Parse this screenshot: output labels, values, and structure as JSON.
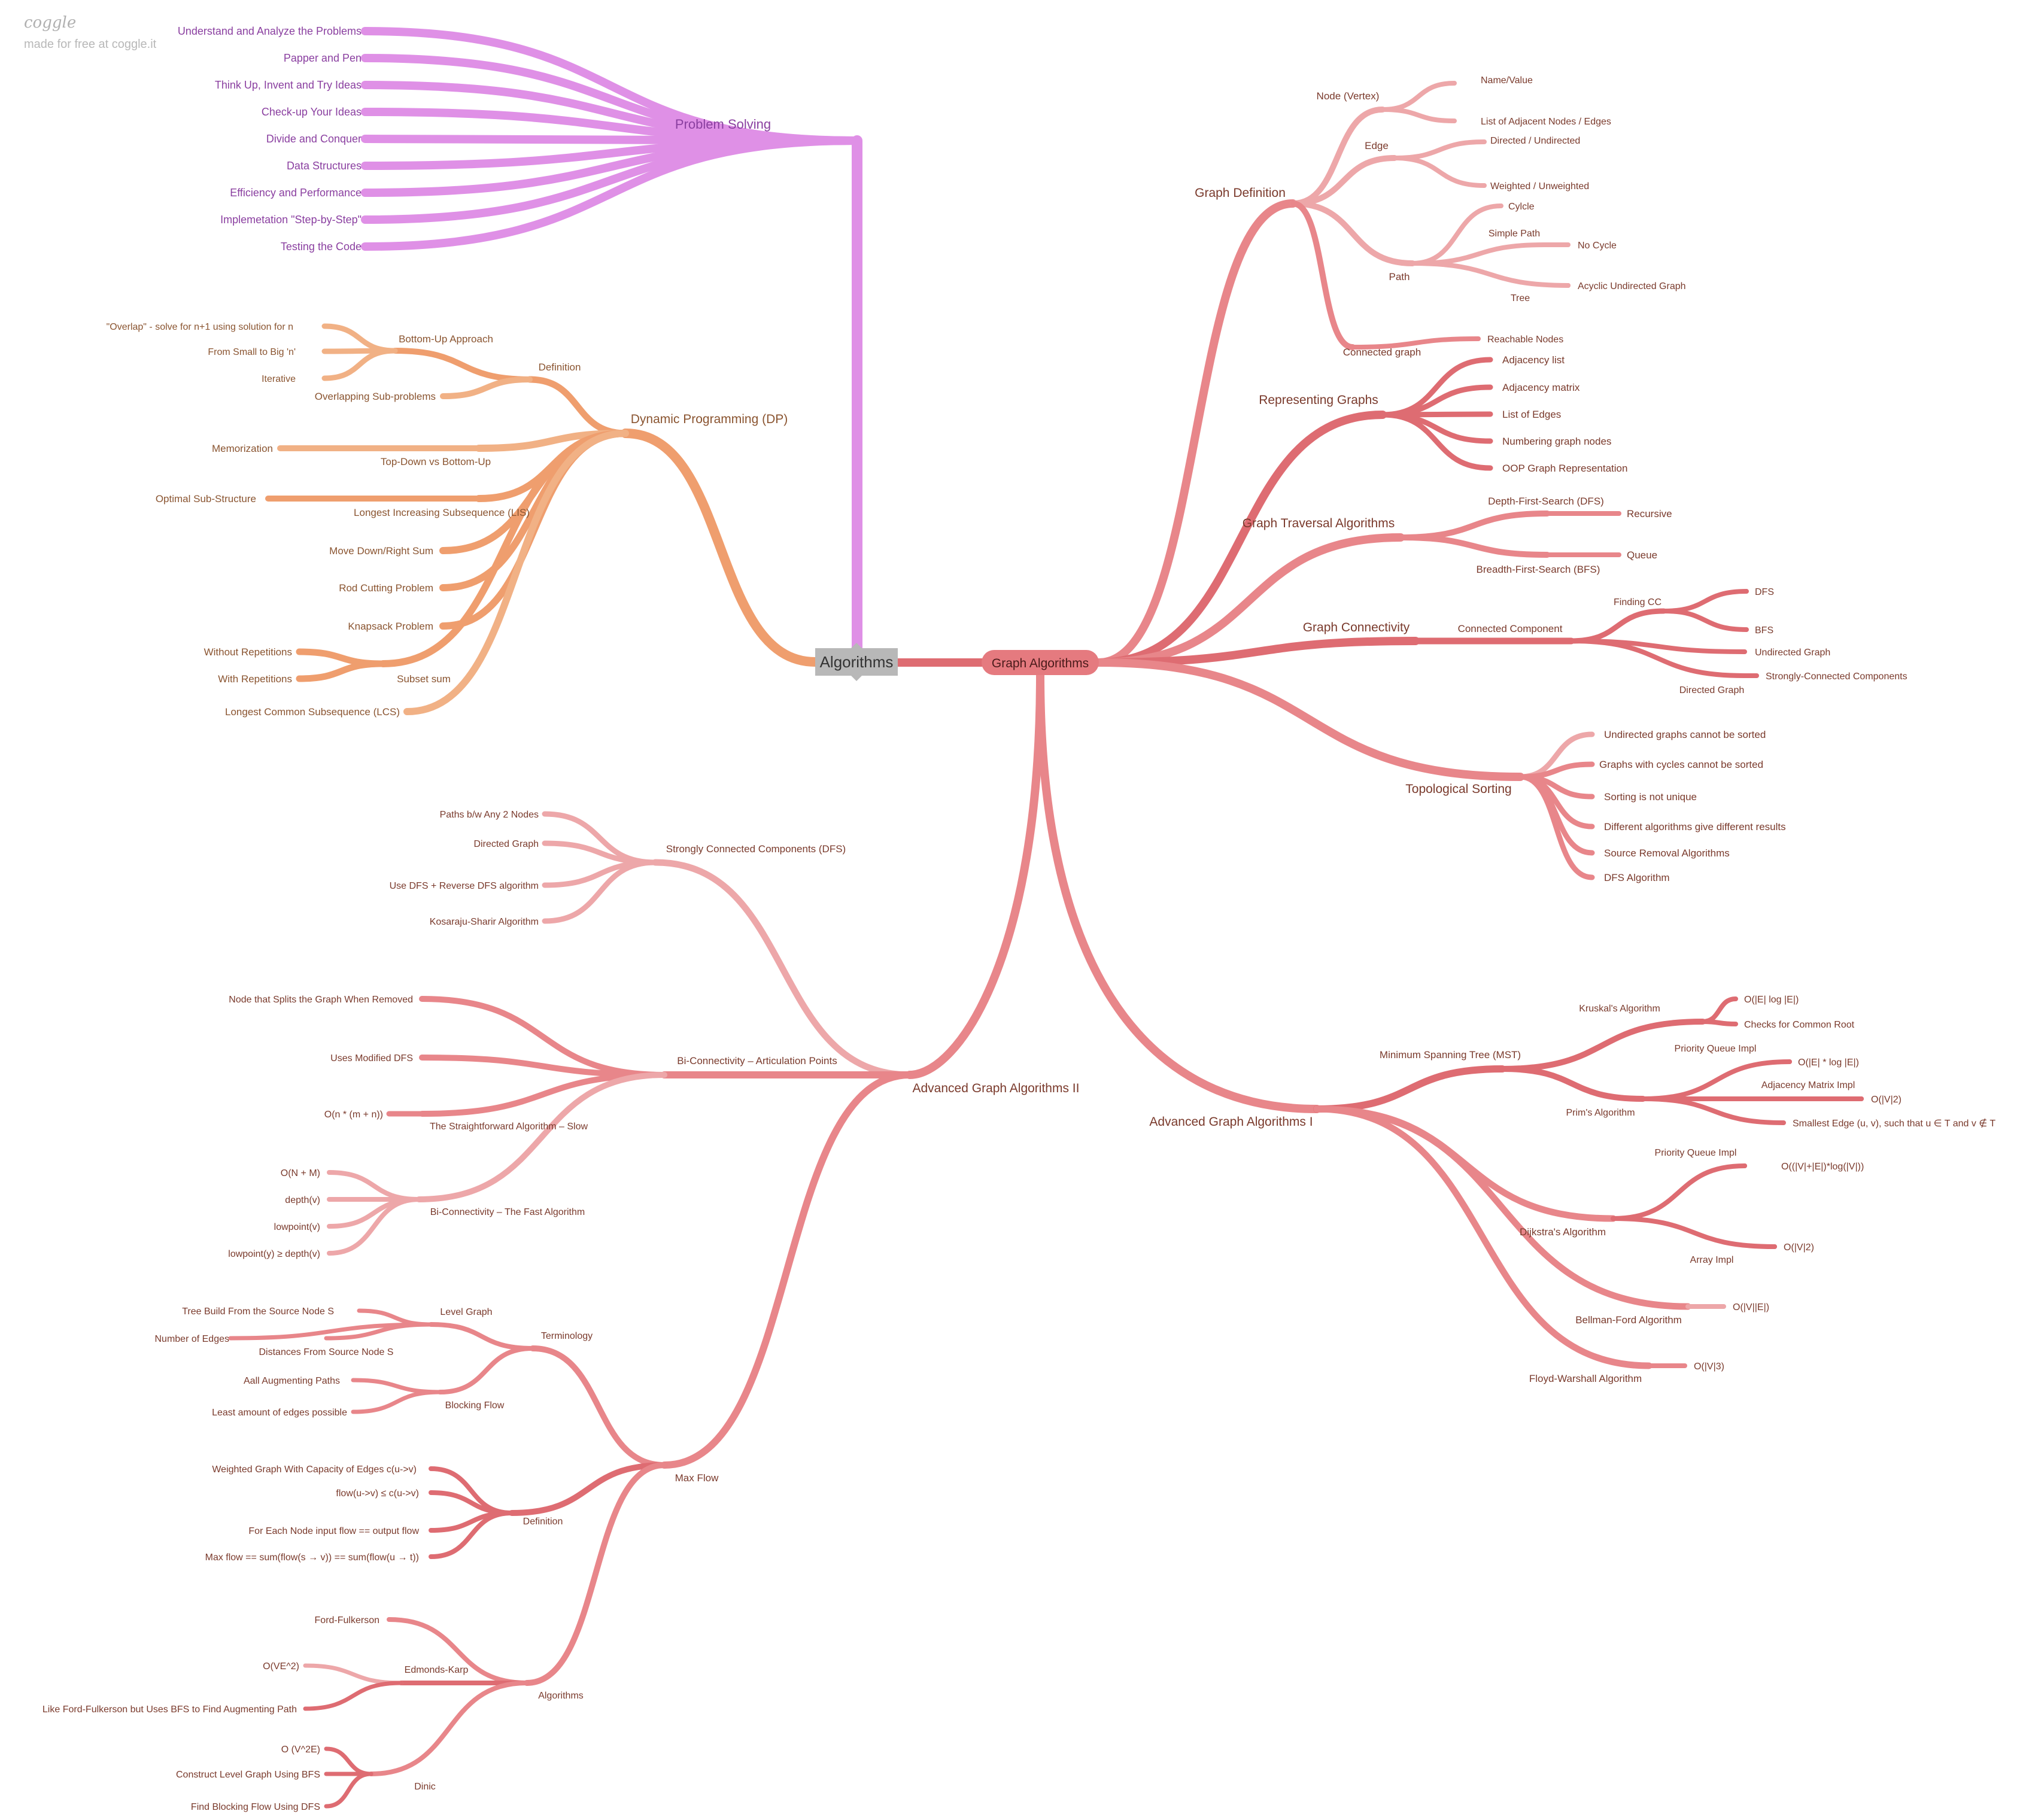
{
  "brand": {
    "logo": "coggle",
    "tagline": "made for free at coggle.it"
  },
  "colors": {
    "pink": "#e8868a",
    "pink_light": "#eda7a9",
    "pink_dark": "#de6c72",
    "purple": "#df90e6",
    "orange": "#ef9e6e",
    "orange_light": "#f1b185",
    "grey_root": "#b8b8b8",
    "graph_node": "#e57a7f"
  },
  "root": {
    "label": "Algorithms"
  },
  "graph_center": {
    "label": "Graph Algorithms"
  },
  "nodes": {
    "ps": {
      "label": "Problem Solving"
    },
    "ps1": {
      "label": "Understand and Analyze the Problems"
    },
    "ps2": {
      "label": "Papper and Pen"
    },
    "ps3": {
      "label": "Think Up, Invent and Try Ideas"
    },
    "ps4": {
      "label": "Check-up Your Ideas"
    },
    "ps5": {
      "label": "Divide and Conquer"
    },
    "ps6": {
      "label": "Data Structures"
    },
    "ps7": {
      "label": "Efficiency and Performance"
    },
    "ps8": {
      "label": "Implemetation \"Step-by-Step\""
    },
    "ps9": {
      "label": "Testing the Code"
    },
    "dp": {
      "label": "Dynamic Programming (DP)"
    },
    "dpdef": {
      "label": "Definition"
    },
    "dpbu": {
      "label": "Bottom-Up Approach"
    },
    "dpov": {
      "label": "\"Overlap\" - solve for n+1 using solution for n"
    },
    "dpsm": {
      "label": "From Small to Big 'n'"
    },
    "dpit": {
      "label": "Iterative"
    },
    "dpos": {
      "label": "Overlapping Sub-problems"
    },
    "dptd": {
      "label": "Top-Down vs Bottom-Up"
    },
    "dpme": {
      "label": "Memorization"
    },
    "dplis": {
      "label": "Longest Increasing Subsequence (LIS)"
    },
    "dpopt": {
      "label": "Optimal Sub-Structure"
    },
    "dpmd": {
      "label": "Move Down/Right Sum"
    },
    "dprc": {
      "label": "Rod Cutting Problem"
    },
    "dpks": {
      "label": "Knapsack Problem"
    },
    "dpss": {
      "label": "Subset sum"
    },
    "dpwo": {
      "label": "Without Repetitions"
    },
    "dpwr": {
      "label": "With Repetitions"
    },
    "dplcs": {
      "label": "Longest Common Subsequence (LCS)"
    },
    "gd": {
      "label": "Graph Definition"
    },
    "gdnv": {
      "label": "Node (Vertex)"
    },
    "gdnm": {
      "label": "Name/Value"
    },
    "gdla": {
      "label": "List of Adjacent Nodes / Edges"
    },
    "gded": {
      "label": "Edge"
    },
    "gddu": {
      "label": "Directed / Undirected"
    },
    "gdwu": {
      "label": "Weighted / Unweighted"
    },
    "gdpa": {
      "label": "Path"
    },
    "gdcy": {
      "label": "Cylcle"
    },
    "gdsp": {
      "label": "Simple Path"
    },
    "gdnc": {
      "label": "No Cycle"
    },
    "gdtr": {
      "label": "Tree"
    },
    "gdau": {
      "label": "Acyclic Undirected Graph"
    },
    "gdcg": {
      "label": "Connected graph"
    },
    "gdrn": {
      "label": "Reachable Nodes"
    },
    "rg": {
      "label": "Representing Graphs"
    },
    "rg1": {
      "label": "Adjacency list"
    },
    "rg2": {
      "label": "Adjacency matrix"
    },
    "rg3": {
      "label": "List of Edges"
    },
    "rg4": {
      "label": "Numbering graph nodes"
    },
    "rg5": {
      "label": "OOP Graph Representation"
    },
    "gt": {
      "label": "Graph Traversal Algorithms"
    },
    "gtdfs": {
      "label": "Depth-First-Search (DFS)"
    },
    "gtrec": {
      "label": "Recursive"
    },
    "gtbfs": {
      "label": "Breadth-First-Search (BFS)"
    },
    "gtq": {
      "label": "Queue"
    },
    "gc": {
      "label": "Graph Connectivity"
    },
    "gccc": {
      "label": "Connected Component"
    },
    "gcfc": {
      "label": "Finding CC"
    },
    "gcdfs": {
      "label": "DFS"
    },
    "gcbfs": {
      "label": "BFS"
    },
    "gcug": {
      "label": "Undirected Graph"
    },
    "gcdg": {
      "label": "Directed Graph"
    },
    "gcscc": {
      "label": "Strongly-Connected Components"
    },
    "ts": {
      "label": "Topological Sorting"
    },
    "ts1": {
      "label": "Undirected graphs cannot be sorted"
    },
    "ts2": {
      "label": "Graphs with cycles cannot be sorted"
    },
    "ts3": {
      "label": "Sorting is not unique"
    },
    "ts4": {
      "label": "Different algorithms give different results"
    },
    "ts5": {
      "label": "Source Removal Algorithms"
    },
    "ts6": {
      "label": "DFS Algorithm"
    },
    "ag1": {
      "label": "Advanced Graph Algorithms I"
    },
    "mst": {
      "label": "Minimum Spanning Tree (MST)"
    },
    "kr": {
      "label": "Kruskal's Algorithm"
    },
    "kr1": {
      "label": "O(|E| log |E|)"
    },
    "kr2": {
      "label": "Checks for Common Root"
    },
    "pr": {
      "label": "Prim's Algorithm"
    },
    "prpq": {
      "label": "Priority Queue Impl"
    },
    "prpq1": {
      "label": "O(|E| * log |E|)"
    },
    "pram": {
      "label": "Adjacency Matrix Impl"
    },
    "pram1": {
      "label": "O(|V|2)"
    },
    "prse": {
      "label": "Smallest Edge (u, v), such that u ∈ T and v ∉ T"
    },
    "dj": {
      "label": "Dijkstra's Algorithm"
    },
    "djpq": {
      "label": "Priority Queue Impl"
    },
    "djpq1": {
      "label": "O((|V|+|E|)*log(|V|))"
    },
    "djar": {
      "label": "Array Impl"
    },
    "djar1": {
      "label": "O(|V|2)"
    },
    "bf": {
      "label": "Bellman-Ford Algorithm"
    },
    "bf1": {
      "label": "O(|V||E|)"
    },
    "fw": {
      "label": "Floyd-Warshall Algorithm"
    },
    "fw1": {
      "label": "O(|V|3)"
    },
    "ag2": {
      "label": "Advanced Graph Algorithms II"
    },
    "scc": {
      "label": "Strongly Connected Components (DFS)"
    },
    "scc1": {
      "label": "Paths b/w Any 2 Nodes"
    },
    "scc2": {
      "label": "Directed Graph"
    },
    "scc3": {
      "label": "Use DFS + Reverse DFS algorithm"
    },
    "scc4": {
      "label": "Kosaraju-Sharir Algorithm"
    },
    "bc": {
      "label": "Bi-Connectivity – Articulation Points"
    },
    "bc1": {
      "label": "Node that Splits the Graph When Removed"
    },
    "bc2": {
      "label": "Uses Modified DFS"
    },
    "bcslow": {
      "label": "The Straightforward Algorithm – Slow"
    },
    "bcslow1": {
      "label": "O(n * (m + n))"
    },
    "bcfast": {
      "label": "Bi-Connectivity – The Fast Algorithm"
    },
    "bcf1": {
      "label": "O(N + M)"
    },
    "bcf2": {
      "label": "depth(v)"
    },
    "bcf3": {
      "label": "lowpoint(v)"
    },
    "bcf4": {
      "label": "lowpoint(y) ≥ depth(v)"
    },
    "mf": {
      "label": "Max Flow"
    },
    "mfterm": {
      "label": "Terminology"
    },
    "mflg": {
      "label": "Level Graph"
    },
    "mflg1": {
      "label": "Tree Build From the Source Node S"
    },
    "mflg2": {
      "label": "Number of Edges"
    },
    "mflg3": {
      "label": "Distances From Source Node S"
    },
    "mfbf": {
      "label": "Blocking Flow"
    },
    "mfbf1": {
      "label": "Aall Augmenting Paths"
    },
    "mfbf2": {
      "label": "Least amount of edges possible"
    },
    "mfdef": {
      "label": "Definition"
    },
    "mfd1": {
      "label": "Weighted Graph With Capacity of Edges c(u->v)"
    },
    "mfd2": {
      "label": "flow(u->v) ≤ c(u->v)"
    },
    "mfd3": {
      "label": "For Each Node input flow == output flow"
    },
    "mfd4": {
      "label": "Max flow == sum(flow(s → v)) == sum(flow(u → t))"
    },
    "mfalg": {
      "label": "Algorithms"
    },
    "mfff": {
      "label": "Ford-Fulkerson"
    },
    "mfek": {
      "label": "Edmonds-Karp"
    },
    "mfek1": {
      "label": "O(VE^2)"
    },
    "mfek2": {
      "label": "Like Ford-Fulkerson but Uses BFS to Find Augmenting Path"
    },
    "mfdn": {
      "label": "Dinic"
    },
    "mfdn1": {
      "label": "O (V^2E)"
    },
    "mfdn2": {
      "label": "Construct Level Graph Using BFS"
    },
    "mfdn3": {
      "label": "Find Blocking Flow Using DFS"
    }
  }
}
